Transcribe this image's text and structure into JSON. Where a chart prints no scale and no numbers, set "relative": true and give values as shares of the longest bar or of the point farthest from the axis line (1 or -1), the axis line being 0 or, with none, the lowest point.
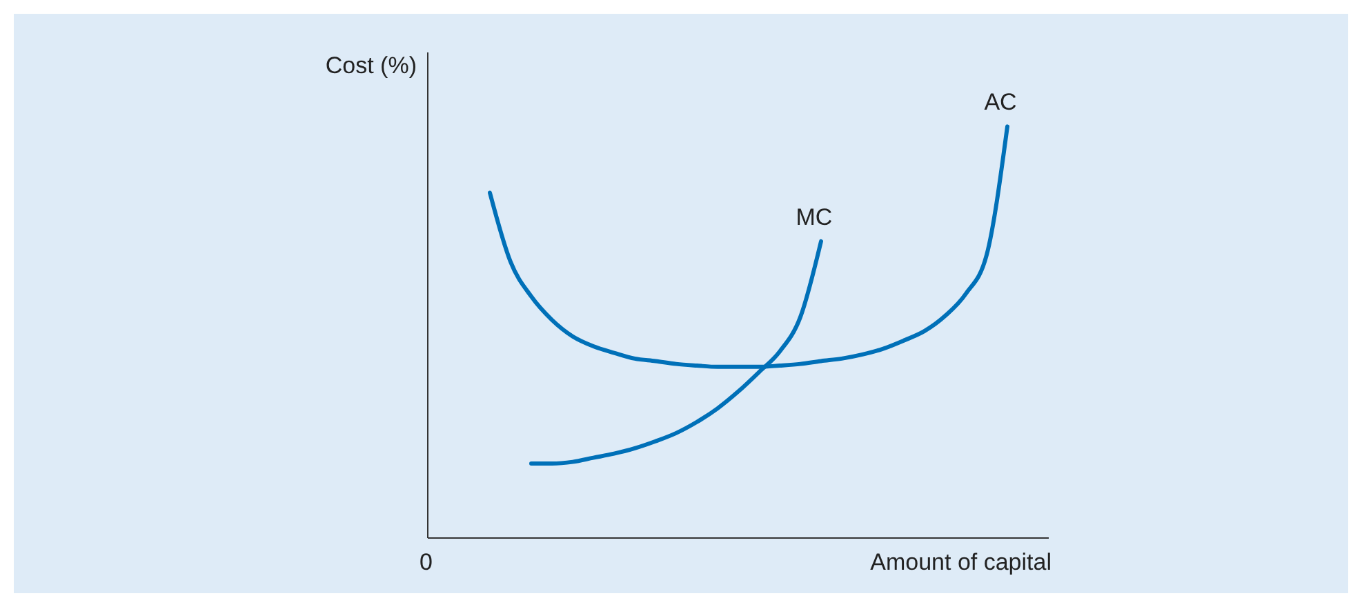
{
  "chart_data": {
    "type": "line",
    "relative": true,
    "xlabel": "Amount of capital",
    "ylabel": "Cost (%)",
    "annotations": [
      "0"
    ],
    "categories": [
      null,
      null,
      null,
      null,
      null,
      null,
      null,
      null,
      null,
      null,
      null,
      null,
      null,
      null,
      null,
      null,
      null,
      null,
      null,
      null,
      null,
      null,
      null,
      null,
      null,
      null,
      null,
      null,
      null,
      null,
      null
    ],
    "series": [
      {
        "name": "AC",
        "color": "#0070b8",
        "values": [
          null,
          null,
          null,
          0.839,
          0.671,
          0.587,
          0.53,
          0.49,
          0.466,
          0.45,
          0.436,
          0.43,
          0.423,
          0.419,
          0.416,
          0.416,
          0.416,
          0.419,
          0.423,
          0.43,
          0.436,
          0.446,
          0.46,
          0.48,
          0.503,
          0.54,
          0.594,
          0.688,
          1,
          null,
          null
        ]
      },
      {
        "name": "MC",
        "color": "#0070b8",
        "values": [
          null,
          null,
          null,
          null,
          null,
          0.181,
          0.181,
          0.185,
          0.195,
          0.205,
          0.218,
          0.235,
          0.255,
          0.282,
          0.315,
          0.356,
          0.403,
          0.453,
          0.537,
          0.721,
          null,
          null,
          null,
          null,
          null,
          null,
          null,
          null,
          null,
          null,
          null
        ]
      }
    ]
  }
}
